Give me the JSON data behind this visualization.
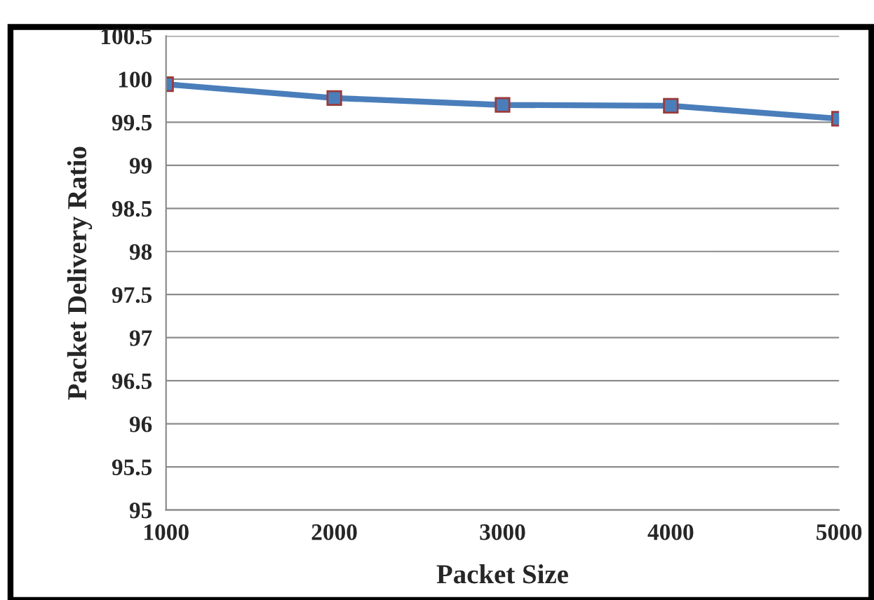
{
  "chart_data": {
    "type": "line",
    "xlabel": "Packet Size",
    "ylabel": "Packet Delivery Ratio",
    "categories": [
      "1000",
      "2000",
      "3000",
      "4000",
      "5000"
    ],
    "series": [
      {
        "color": "#4a7ebb",
        "values": [
          99.94,
          99.78,
          99.7,
          99.69,
          99.54
        ]
      }
    ],
    "ylim": [
      95,
      100.5
    ],
    "yticks": [
      95,
      95.5,
      96,
      96.5,
      97,
      97.5,
      98,
      98.5,
      99,
      99.5,
      100,
      100.5
    ],
    "grid": "y",
    "legend": false,
    "marker": "square",
    "line_style": "solid"
  }
}
